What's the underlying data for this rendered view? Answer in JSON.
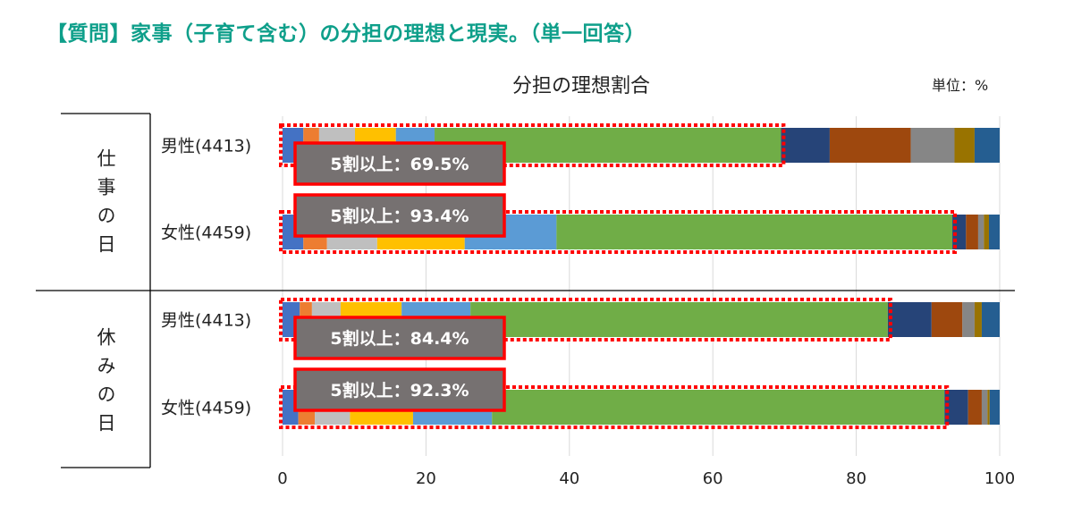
{
  "title": "【質問】家事（子育て含む）の分担の理想と現実。（単一回答）",
  "unit_label": "単位：%",
  "chart_data": {
    "type": "bar",
    "orientation": "horizontal-stacked",
    "title": "分担の理想割合",
    "xlim": [
      0,
      100
    ],
    "xticks": [
      "0",
      "20",
      "40",
      "60",
      "80",
      "100"
    ],
    "grid": true,
    "groups": [
      {
        "label": "仕事の日",
        "label_chars": [
          "仕",
          "事",
          "の",
          "日"
        ]
      },
      {
        "label": "休みの日",
        "label_chars": [
          "休",
          "み",
          "の",
          "日"
        ]
      }
    ],
    "categories": [
      "男性(4413)",
      "女性(4459)",
      "男性(4413)",
      "女性(4459)"
    ],
    "category_group": [
      0,
      0,
      1,
      1
    ],
    "segment_colors": [
      "#4472C4",
      "#ED7D31",
      "#BFBFBF",
      "#FFC000",
      "#5B9BD5",
      "#70AD47",
      "#264478",
      "#9E480E",
      "#868686",
      "#997300",
      "#255E91"
    ],
    "rows": [
      [
        2.9,
        2.2,
        5.0,
        5.7,
        5.4,
        48.3,
        6.8,
        11.3,
        6.1,
        2.8,
        3.5
      ],
      [
        2.9,
        3.3,
        7.0,
        12.2,
        12.8,
        55.2,
        1.9,
        1.7,
        0.8,
        0.7,
        1.5
      ],
      [
        2.4,
        1.7,
        4.0,
        8.5,
        9.6,
        58.2,
        6.1,
        4.3,
        1.7,
        1.0,
        2.5
      ],
      [
        2.2,
        2.3,
        4.9,
        8.8,
        11.0,
        63.1,
        3.3,
        1.9,
        0.8,
        0.3,
        1.4
      ]
    ],
    "highlight_segments": 6,
    "annotations": [
      "5割以上：69.5%",
      "5割以上：93.4%",
      "5割以上：84.4%",
      "5割以上：92.3%"
    ],
    "highlight_color": "#FF0000",
    "callout_fill": "#767171"
  }
}
